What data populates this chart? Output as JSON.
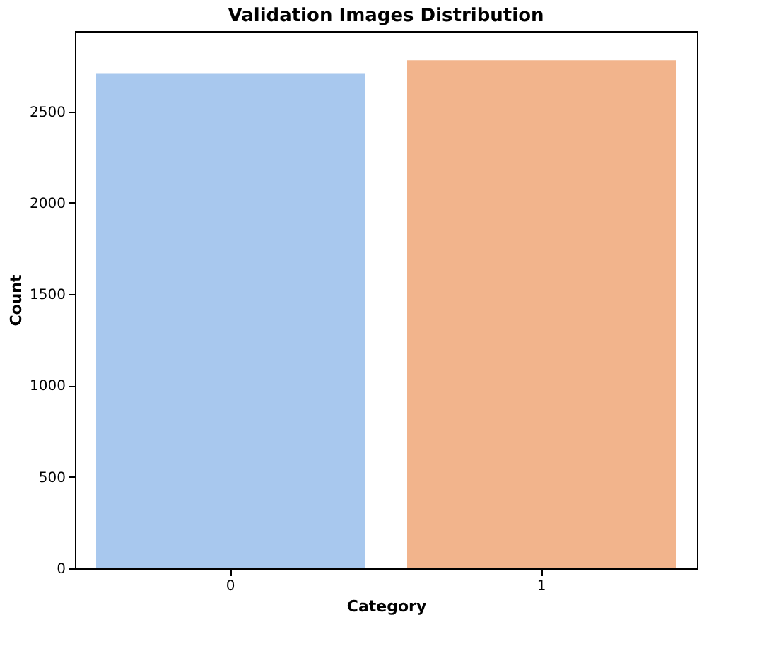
{
  "chart_data": {
    "type": "bar",
    "title": "Validation Images Distribution",
    "xlabel": "Category",
    "ylabel": "Count",
    "categories": [
      "0",
      "1"
    ],
    "values": [
      2710,
      2780
    ],
    "colors": [
      "#a8c8ee",
      "#f2b48c"
    ],
    "ylim": [
      0,
      2940
    ],
    "yticks": [
      0,
      500,
      1000,
      1500,
      2000,
      2500
    ],
    "grid": false
  }
}
